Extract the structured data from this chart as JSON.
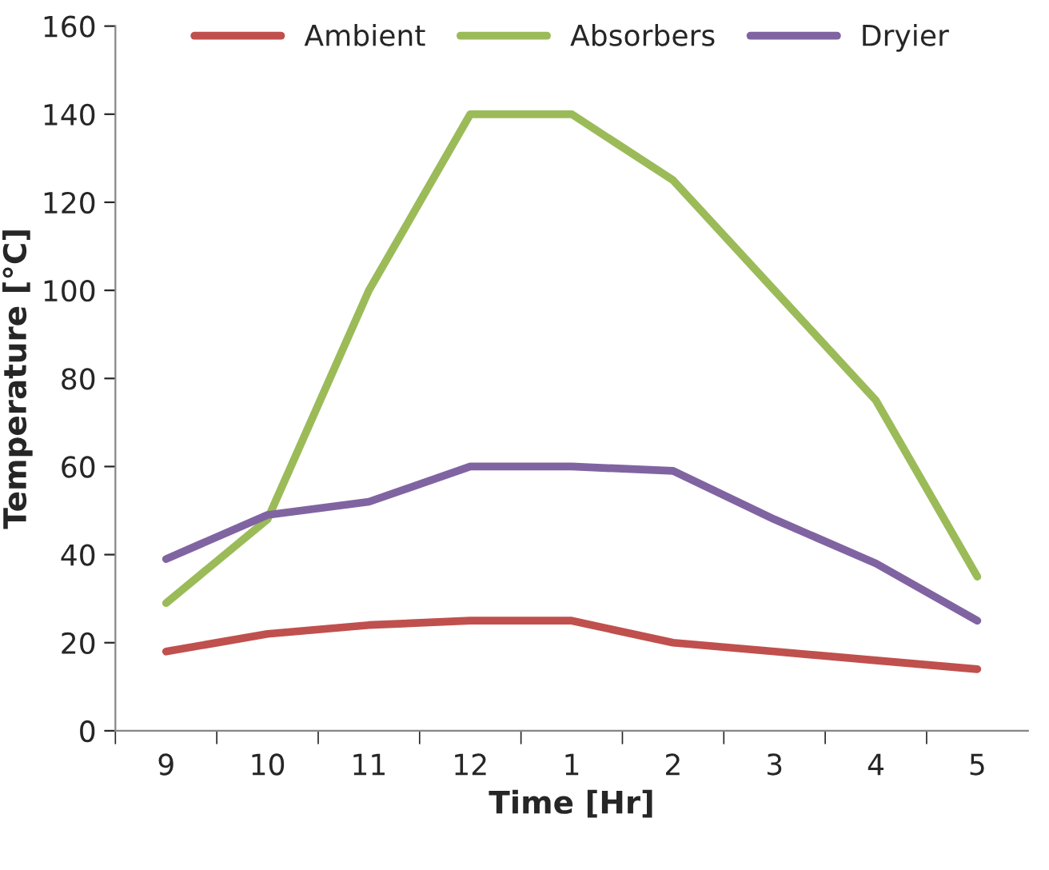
{
  "chart_data": {
    "type": "line",
    "xlabel": "Time [Hr]",
    "ylabel": "Temperature [°C]",
    "categories": [
      "9",
      "10",
      "11",
      "12",
      "1",
      "2",
      "3",
      "4",
      "5"
    ],
    "series": [
      {
        "name": "Ambient",
        "color": "#c0504d",
        "values": [
          18,
          22,
          24,
          25,
          25,
          20,
          18,
          16,
          14
        ]
      },
      {
        "name": "Absorbers",
        "color": "#9bbb59",
        "values": [
          29,
          48,
          100,
          140,
          140,
          125,
          100,
          75,
          35
        ]
      },
      {
        "name": "Dryier",
        "color": "#8064a2",
        "values": [
          39,
          49,
          52,
          60,
          60,
          59,
          48,
          38,
          25
        ]
      }
    ],
    "ylim": [
      0,
      160
    ],
    "yticks": [
      0,
      20,
      40,
      60,
      80,
      100,
      120,
      140,
      160
    ],
    "grid": false,
    "legend": "top",
    "marker": "none",
    "line_style": "solid"
  }
}
